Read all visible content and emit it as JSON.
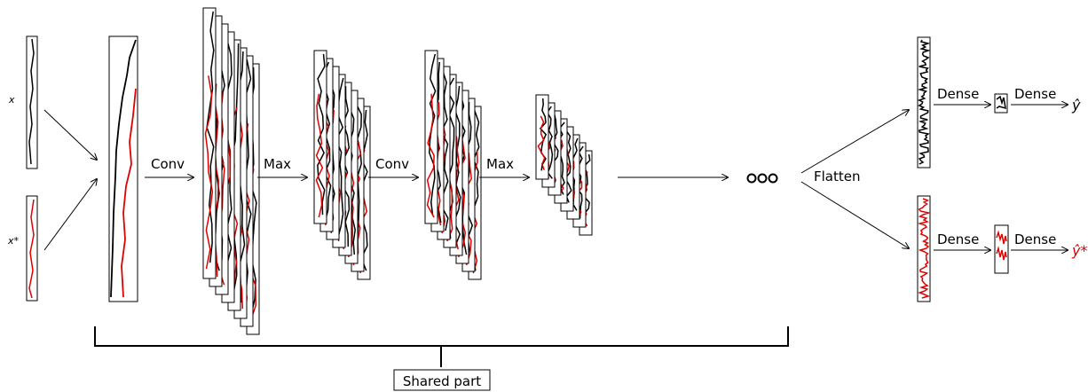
{
  "inputs": {
    "x_label": "x",
    "x_star_label": "x*"
  },
  "ops": {
    "conv1": "Conv",
    "max1": "Max",
    "conv2": "Conv",
    "max2": "Max",
    "flatten": "Flatten",
    "dense_top_1": "Dense",
    "dense_top_2": "Dense",
    "dense_bottom_1": "Dense",
    "dense_bottom_2": "Dense"
  },
  "outputs": {
    "y_hat": "ŷ",
    "y_hat_star": "ŷ*"
  },
  "shared_part": "Shared part",
  "colors": {
    "primary": "#000000",
    "secondary": "#e00000"
  }
}
